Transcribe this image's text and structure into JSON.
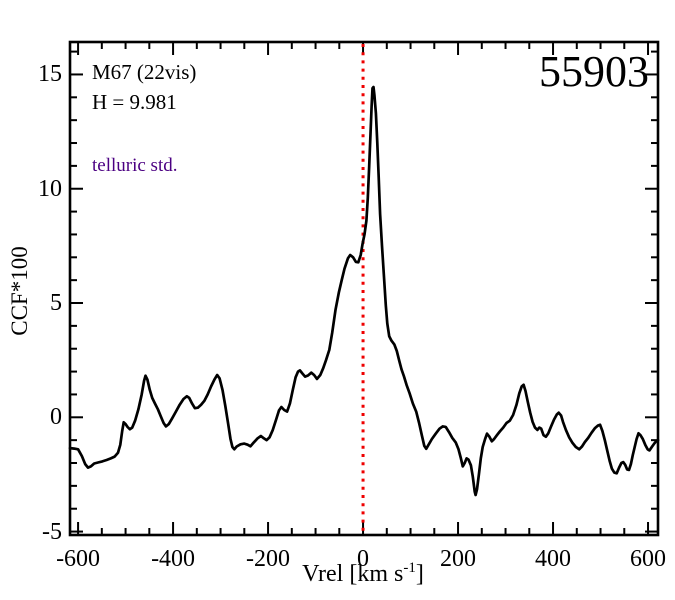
{
  "annotations": {
    "cluster": "M67 (22vis)",
    "magnitude": "H = 9.981",
    "note": "telluric std.",
    "note_color": "#4B0082",
    "star_id": "55903"
  },
  "axes": {
    "ylabel": "CCF*100",
    "xlabel_pre": "Vrel [km s",
    "xlabel_sup": "-1",
    "xlabel_post": "]",
    "x_tick_labels": [
      "-600",
      "-400",
      "-200",
      "0",
      "200",
      "400",
      "600"
    ],
    "y_tick_labels": [
      "-5",
      "0",
      "5",
      "10",
      "15"
    ]
  },
  "chart_data": {
    "type": "line",
    "title": "",
    "xlabel": "Vrel [km s^-1]",
    "ylabel": "CCF*100",
    "xlim": [
      -617,
      621
    ],
    "ylim": [
      -5.15,
      16.42
    ],
    "x_major_ticks": [
      -600,
      -400,
      -200,
      0,
      200,
      400,
      600
    ],
    "x_minor_step": 50,
    "y_major_ticks": [
      -5,
      0,
      5,
      10,
      15
    ],
    "y_minor_step": 1,
    "grid": false,
    "legend": false,
    "frame_color": "#000000",
    "vline": {
      "x": 0,
      "color": "#EE0000",
      "style": "dotted"
    },
    "series": [
      {
        "name": "CCF",
        "color": "#000000",
        "points": [
          [
            -617,
            -1.35
          ],
          [
            -608,
            -1.37
          ],
          [
            -600,
            -1.4
          ],
          [
            -592,
            -1.7
          ],
          [
            -585,
            -2.05
          ],
          [
            -579,
            -2.2
          ],
          [
            -573,
            -2.15
          ],
          [
            -566,
            -2.02
          ],
          [
            -558,
            -1.98
          ],
          [
            -549,
            -1.93
          ],
          [
            -540,
            -1.87
          ],
          [
            -531,
            -1.8
          ],
          [
            -523,
            -1.72
          ],
          [
            -516,
            -1.55
          ],
          [
            -511,
            -1.2
          ],
          [
            -507,
            -0.6
          ],
          [
            -504,
            -0.22
          ],
          [
            -500,
            -0.3
          ],
          [
            -496,
            -0.42
          ],
          [
            -491,
            -0.52
          ],
          [
            -486,
            -0.45
          ],
          [
            -480,
            -0.15
          ],
          [
            -473,
            0.35
          ],
          [
            -466,
            1.0
          ],
          [
            -461,
            1.6
          ],
          [
            -458,
            1.82
          ],
          [
            -454,
            1.65
          ],
          [
            -449,
            1.2
          ],
          [
            -444,
            0.85
          ],
          [
            -438,
            0.6
          ],
          [
            -432,
            0.35
          ],
          [
            -426,
            0.05
          ],
          [
            -420,
            -0.25
          ],
          [
            -415,
            -0.4
          ],
          [
            -409,
            -0.3
          ],
          [
            -402,
            -0.05
          ],
          [
            -394,
            0.25
          ],
          [
            -386,
            0.55
          ],
          [
            -378,
            0.8
          ],
          [
            -371,
            0.92
          ],
          [
            -366,
            0.85
          ],
          [
            -360,
            0.6
          ],
          [
            -354,
            0.4
          ],
          [
            -348,
            0.42
          ],
          [
            -341,
            0.55
          ],
          [
            -334,
            0.72
          ],
          [
            -327,
            1.0
          ],
          [
            -320,
            1.35
          ],
          [
            -313,
            1.65
          ],
          [
            -307,
            1.85
          ],
          [
            -302,
            1.7
          ],
          [
            -296,
            1.2
          ],
          [
            -290,
            0.5
          ],
          [
            -284,
            -0.3
          ],
          [
            -279,
            -0.95
          ],
          [
            -275,
            -1.3
          ],
          [
            -271,
            -1.4
          ],
          [
            -266,
            -1.28
          ],
          [
            -258,
            -1.18
          ],
          [
            -250,
            -1.15
          ],
          [
            -243,
            -1.2
          ],
          [
            -237,
            -1.27
          ],
          [
            -230,
            -1.1
          ],
          [
            -222,
            -0.92
          ],
          [
            -215,
            -0.82
          ],
          [
            -209,
            -0.92
          ],
          [
            -203,
            -1.0
          ],
          [
            -197,
            -0.88
          ],
          [
            -190,
            -0.55
          ],
          [
            -183,
            -0.1
          ],
          [
            -177,
            0.3
          ],
          [
            -172,
            0.45
          ],
          [
            -166,
            0.32
          ],
          [
            -160,
            0.25
          ],
          [
            -154,
            0.6
          ],
          [
            -148,
            1.2
          ],
          [
            -142,
            1.75
          ],
          [
            -137,
            2.0
          ],
          [
            -133,
            2.05
          ],
          [
            -128,
            1.92
          ],
          [
            -122,
            1.78
          ],
          [
            -116,
            1.83
          ],
          [
            -109,
            1.95
          ],
          [
            -103,
            1.85
          ],
          [
            -97,
            1.68
          ],
          [
            -90,
            1.85
          ],
          [
            -84,
            2.15
          ],
          [
            -78,
            2.5
          ],
          [
            -71,
            2.95
          ],
          [
            -65,
            3.7
          ],
          [
            -58,
            4.7
          ],
          [
            -51,
            5.45
          ],
          [
            -45,
            6.0
          ],
          [
            -39,
            6.5
          ],
          [
            -32,
            6.95
          ],
          [
            -27,
            7.1
          ],
          [
            -21,
            7.0
          ],
          [
            -15,
            6.8
          ],
          [
            -10,
            6.78
          ],
          [
            -5,
            7.1
          ],
          [
            -1,
            7.6
          ],
          [
            3,
            8.0
          ],
          [
            7,
            8.6
          ],
          [
            10,
            9.6
          ],
          [
            13,
            11.0
          ],
          [
            16,
            12.5
          ],
          [
            18,
            13.6
          ],
          [
            20,
            14.4
          ],
          [
            22,
            14.45
          ],
          [
            24,
            14.1
          ],
          [
            27,
            13.3
          ],
          [
            30,
            12.0
          ],
          [
            33,
            10.5
          ],
          [
            36,
            8.9
          ],
          [
            40,
            7.5
          ],
          [
            44,
            6.2
          ],
          [
            48,
            4.9
          ],
          [
            51,
            4.1
          ],
          [
            55,
            3.55
          ],
          [
            60,
            3.35
          ],
          [
            66,
            3.18
          ],
          [
            71,
            2.9
          ],
          [
            76,
            2.5
          ],
          [
            81,
            2.1
          ],
          [
            86,
            1.8
          ],
          [
            92,
            1.4
          ],
          [
            98,
            1.05
          ],
          [
            105,
            0.6
          ],
          [
            112,
            0.25
          ],
          [
            118,
            -0.25
          ],
          [
            124,
            -0.8
          ],
          [
            129,
            -1.25
          ],
          [
            133,
            -1.38
          ],
          [
            138,
            -1.2
          ],
          [
            145,
            -0.95
          ],
          [
            153,
            -0.72
          ],
          [
            161,
            -0.5
          ],
          [
            168,
            -0.4
          ],
          [
            174,
            -0.42
          ],
          [
            181,
            -0.65
          ],
          [
            188,
            -0.9
          ],
          [
            195,
            -1.1
          ],
          [
            201,
            -1.4
          ],
          [
            206,
            -1.8
          ],
          [
            210,
            -2.15
          ],
          [
            214,
            -2.0
          ],
          [
            218,
            -1.8
          ],
          [
            222,
            -1.85
          ],
          [
            227,
            -2.1
          ],
          [
            231,
            -2.6
          ],
          [
            235,
            -3.25
          ],
          [
            237,
            -3.4
          ],
          [
            240,
            -3.15
          ],
          [
            244,
            -2.5
          ],
          [
            248,
            -1.8
          ],
          [
            252,
            -1.3
          ],
          [
            257,
            -0.95
          ],
          [
            261,
            -0.72
          ],
          [
            266,
            -0.85
          ],
          [
            271,
            -1.05
          ],
          [
            276,
            -0.95
          ],
          [
            282,
            -0.78
          ],
          [
            288,
            -0.62
          ],
          [
            295,
            -0.45
          ],
          [
            302,
            -0.25
          ],
          [
            309,
            -0.15
          ],
          [
            316,
            0.1
          ],
          [
            323,
            0.55
          ],
          [
            329,
            1.05
          ],
          [
            334,
            1.35
          ],
          [
            338,
            1.42
          ],
          [
            342,
            1.15
          ],
          [
            347,
            0.65
          ],
          [
            352,
            0.2
          ],
          [
            357,
            -0.2
          ],
          [
            362,
            -0.45
          ],
          [
            367,
            -0.55
          ],
          [
            371,
            -0.45
          ],
          [
            375,
            -0.5
          ],
          [
            380,
            -0.78
          ],
          [
            385,
            -0.85
          ],
          [
            390,
            -0.7
          ],
          [
            396,
            -0.4
          ],
          [
            402,
            -0.1
          ],
          [
            408,
            0.12
          ],
          [
            412,
            0.2
          ],
          [
            417,
            0.08
          ],
          [
            421,
            -0.2
          ],
          [
            427,
            -0.55
          ],
          [
            434,
            -0.88
          ],
          [
            441,
            -1.12
          ],
          [
            448,
            -1.3
          ],
          [
            455,
            -1.4
          ],
          [
            461,
            -1.28
          ],
          [
            467,
            -1.08
          ],
          [
            474,
            -0.9
          ],
          [
            481,
            -0.68
          ],
          [
            488,
            -0.48
          ],
          [
            494,
            -0.37
          ],
          [
            499,
            -0.33
          ],
          [
            504,
            -0.6
          ],
          [
            509,
            -1.0
          ],
          [
            514,
            -1.45
          ],
          [
            519,
            -1.9
          ],
          [
            524,
            -2.25
          ],
          [
            529,
            -2.42
          ],
          [
            534,
            -2.45
          ],
          [
            539,
            -2.2
          ],
          [
            544,
            -2.0
          ],
          [
            548,
            -1.96
          ],
          [
            552,
            -2.08
          ],
          [
            556,
            -2.28
          ],
          [
            560,
            -2.3
          ],
          [
            564,
            -2.05
          ],
          [
            568,
            -1.65
          ],
          [
            572,
            -1.3
          ],
          [
            576,
            -0.95
          ],
          [
            580,
            -0.7
          ],
          [
            584,
            -0.78
          ],
          [
            589,
            -0.95
          ],
          [
            594,
            -1.2
          ],
          [
            599,
            -1.4
          ],
          [
            603,
            -1.45
          ],
          [
            608,
            -1.3
          ],
          [
            613,
            -1.15
          ],
          [
            618,
            -1.03
          ],
          [
            621,
            -1.0
          ]
        ]
      }
    ]
  }
}
